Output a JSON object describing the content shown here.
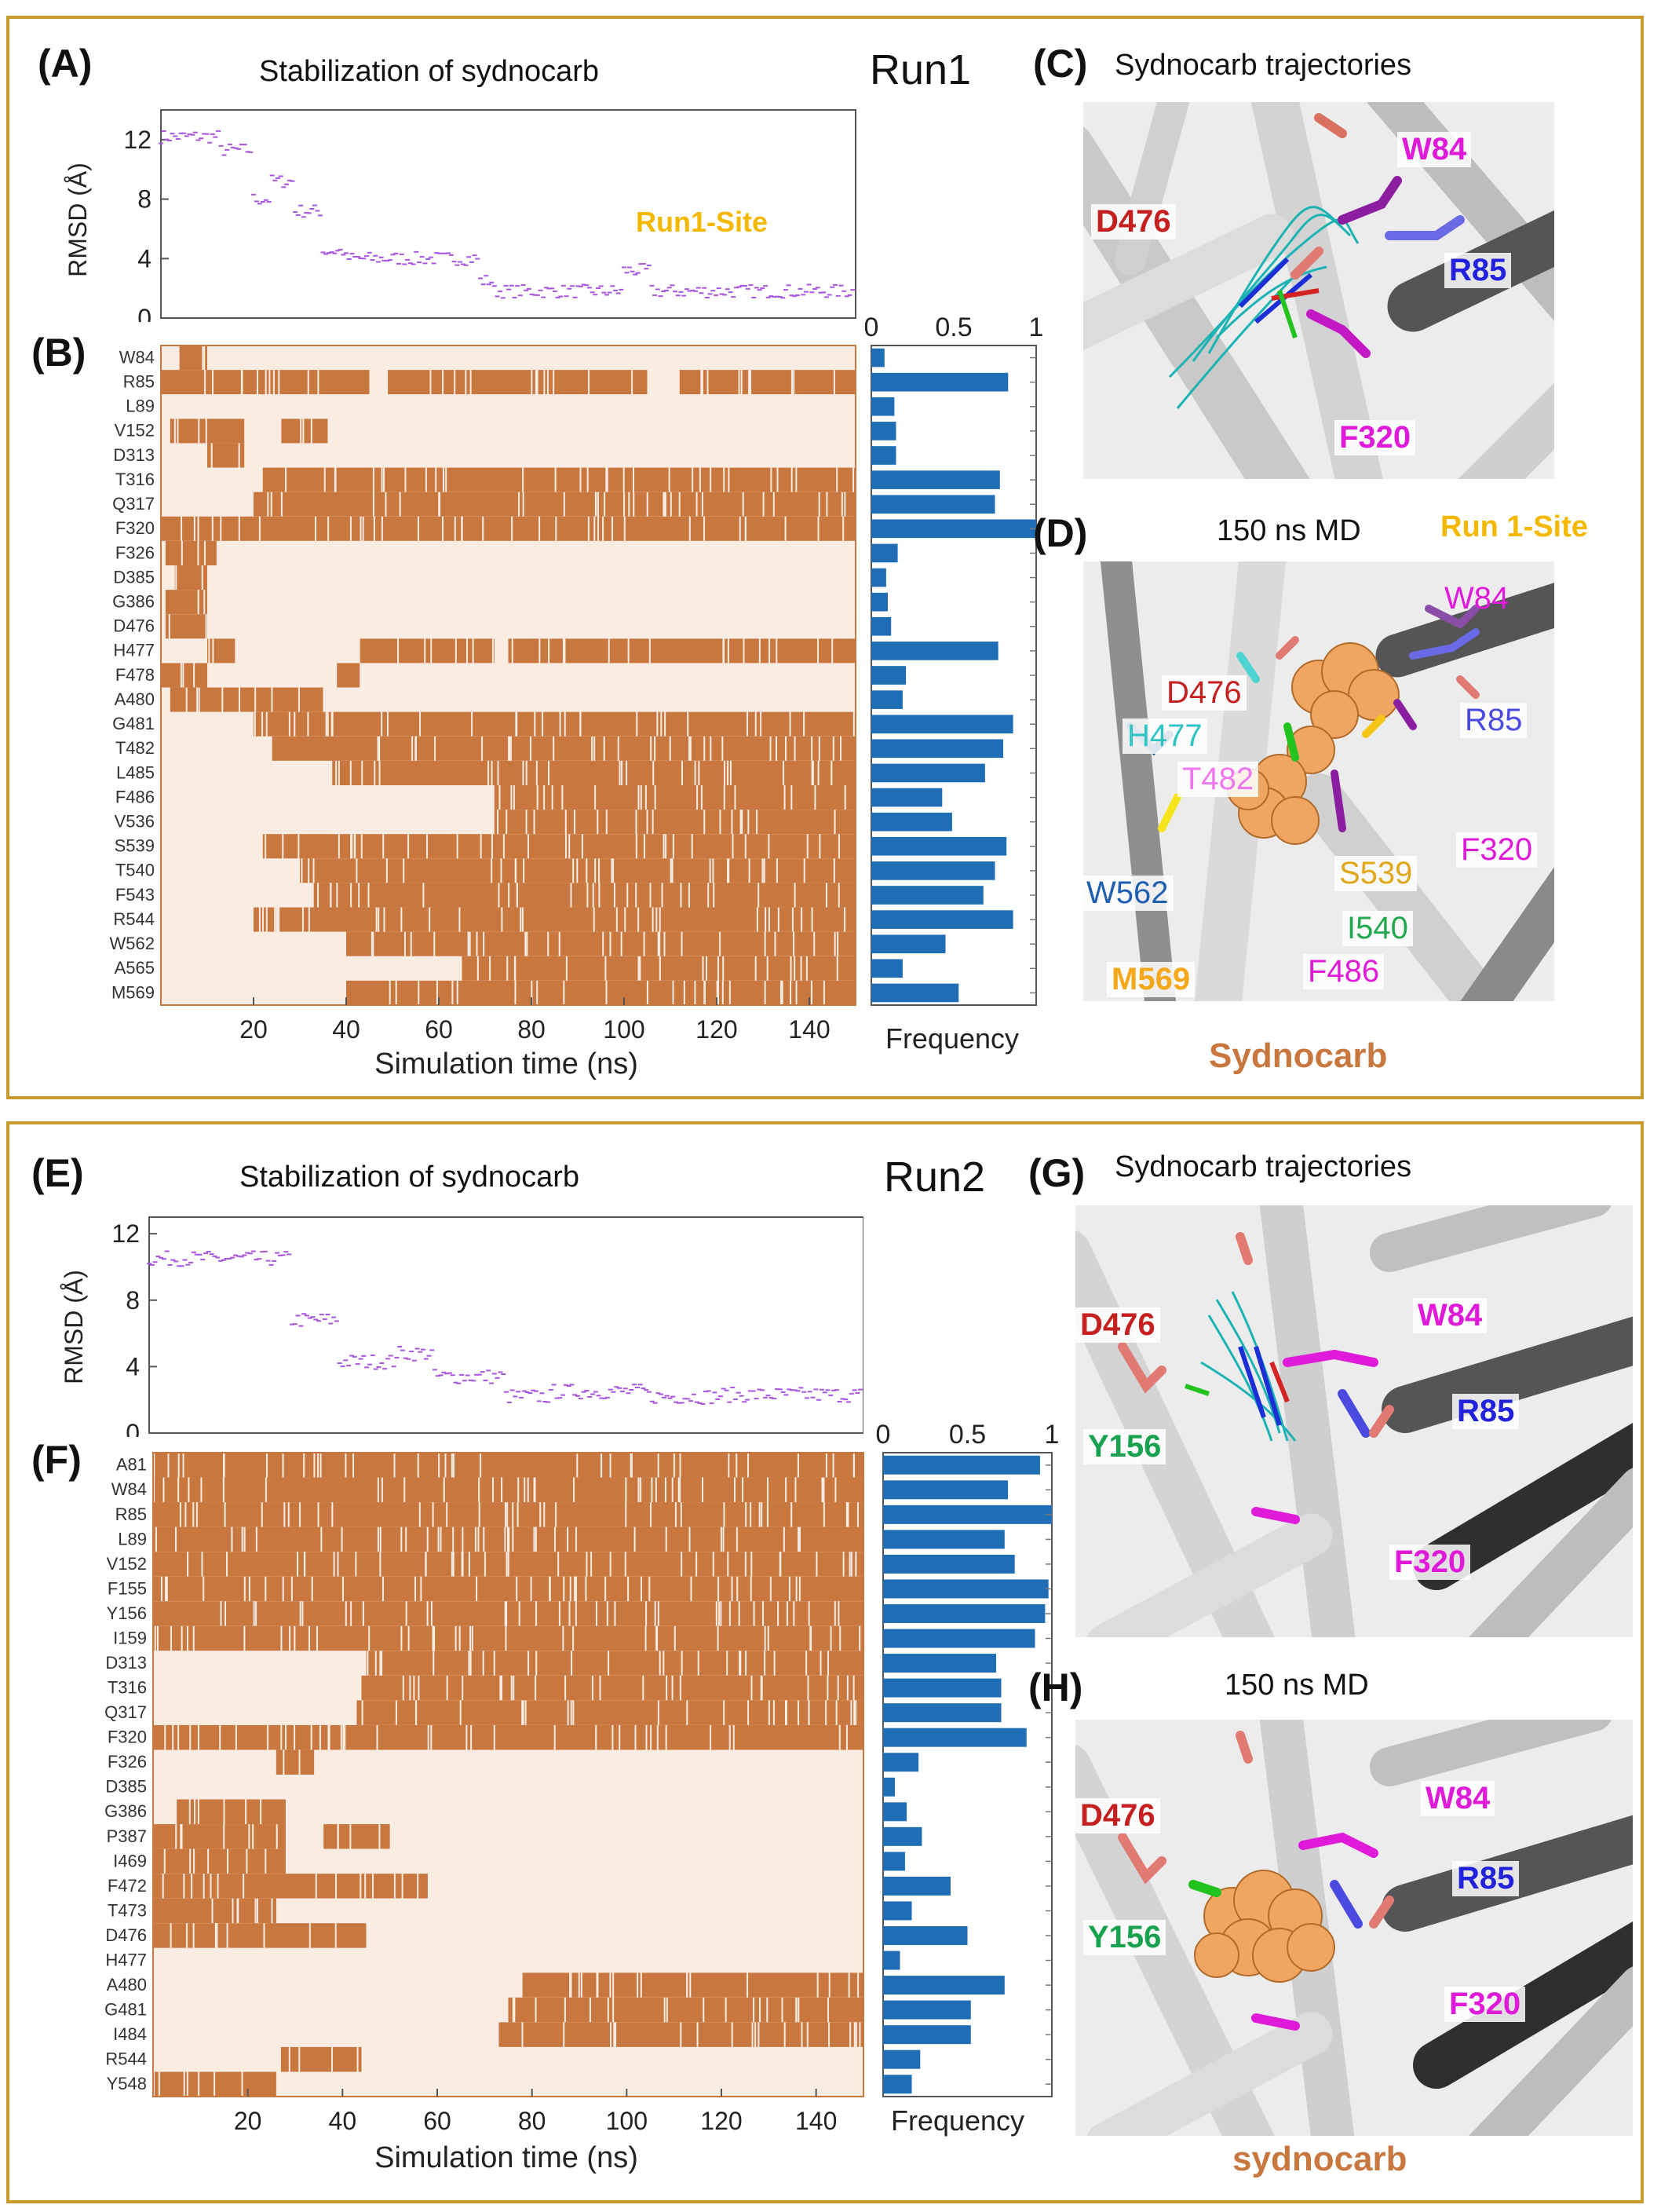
{
  "figure": {
    "run1": {
      "title": "Stabilization of sydnocarb",
      "run_label": "Run1",
      "panel_A": "(A)",
      "panel_B": "(B)",
      "panel_C": "(C)",
      "panel_D": "(D)",
      "site_label": "Run1-Site",
      "traj_label": "Sydnocarb trajectories",
      "md_label": "150 ns MD",
      "md_site_label": "Run 1-Site",
      "ligand_label": "Sydnocarb",
      "residue_labels_C": [
        "W84",
        "D476",
        "R85",
        "F320"
      ],
      "residue_labels_D": [
        "W84",
        "D476",
        "R85",
        "H477",
        "T482",
        "W562",
        "S539",
        "F320",
        "I540",
        "M569",
        "F486"
      ]
    },
    "run2": {
      "title": "Stabilization of sydnocarb",
      "run_label": "Run2",
      "panel_E": "(E)",
      "panel_F": "(F)",
      "panel_G": "(G)",
      "panel_H": "(H)",
      "traj_label": "Sydnocarb trajectories",
      "md_label": "150 ns MD",
      "ligand_label": "sydnocarb",
      "residue_labels_G": [
        "D476",
        "W84",
        "Y156",
        "R85",
        "F320"
      ],
      "residue_labels_H": [
        "D476",
        "W84",
        "R85",
        "Y156",
        "F320"
      ]
    },
    "colors": {
      "frame": "#c99a2e",
      "contact": "#c8773f",
      "no_contact": "#f9ece2",
      "bar": "#1f6eb5",
      "rmsd": "#a855e0",
      "site": "#f5b800"
    }
  },
  "chart_data": [
    {
      "id": "A",
      "type": "scatter",
      "title": "Stabilization of sydnocarb",
      "xlabel": "",
      "ylabel": "RMSD (Å)",
      "xlim": [
        0,
        150
      ],
      "ylim": [
        0,
        14
      ],
      "yticks": [
        0,
        4,
        8,
        12
      ],
      "annotation": "Run1-Site",
      "segments": [
        [
          0,
          13,
          12.2
        ],
        [
          13,
          20,
          11.3
        ],
        [
          20,
          24,
          8.0
        ],
        [
          24,
          29,
          9.2
        ],
        [
          29,
          35,
          7.2
        ],
        [
          35,
          40,
          4.5
        ],
        [
          40,
          69,
          4.0
        ],
        [
          69,
          72,
          2.5
        ],
        [
          72,
          100,
          1.8
        ],
        [
          100,
          106,
          3.2
        ],
        [
          106,
          150,
          1.8
        ]
      ]
    },
    {
      "id": "B",
      "type": "heatmap",
      "xlabel": "Simulation time (ns)",
      "xticks": [
        20,
        40,
        60,
        80,
        100,
        120,
        140
      ],
      "xlim": [
        0,
        150
      ],
      "residues": [
        "W84",
        "R85",
        "L89",
        "V152",
        "D313",
        "T316",
        "Q317",
        "F320",
        "F326",
        "D385",
        "G386",
        "D476",
        "H477",
        "F478",
        "A480",
        "G481",
        "T482",
        "L485",
        "F486",
        "V536",
        "S539",
        "T540",
        "F543",
        "R544",
        "W562",
        "A565",
        "M569"
      ],
      "contact_intervals": [
        [
          [
            4,
            10
          ]
        ],
        [
          [
            0,
            45
          ],
          [
            49,
            105
          ],
          [
            112,
            150
          ]
        ],
        [],
        [
          [
            2,
            18
          ],
          [
            26,
            36
          ]
        ],
        [
          [
            10,
            18
          ]
        ],
        [
          [
            22,
            150
          ]
        ],
        [
          [
            20,
            150
          ]
        ],
        [
          [
            0,
            150
          ]
        ],
        [
          [
            1,
            12
          ]
        ],
        [
          [
            3,
            10
          ]
        ],
        [
          [
            1,
            10
          ]
        ],
        [
          [
            1,
            10
          ]
        ],
        [
          [
            10,
            16
          ],
          [
            43,
            72
          ],
          [
            75,
            150
          ]
        ],
        [
          [
            0,
            10
          ],
          [
            38,
            43
          ]
        ],
        [
          [
            2,
            35
          ]
        ],
        [
          [
            20,
            150
          ]
        ],
        [
          [
            24,
            150
          ]
        ],
        [
          [
            37,
            150
          ]
        ],
        [
          [
            72,
            150
          ]
        ],
        [
          [
            72,
            150
          ]
        ],
        [
          [
            22,
            150
          ]
        ],
        [
          [
            30,
            150
          ]
        ],
        [
          [
            33,
            150
          ]
        ],
        [
          [
            20,
            150
          ]
        ],
        [
          [
            40,
            150
          ]
        ],
        [
          [
            65,
            150
          ]
        ],
        [
          [
            40,
            150
          ]
        ]
      ]
    },
    {
      "id": "B-frequency",
      "type": "bar",
      "orientation": "horizontal",
      "xlabel": "Frequency",
      "xlim": [
        0,
        1
      ],
      "xticks": [
        0,
        0.5,
        1
      ],
      "xtick_labels": [
        "0",
        "0.5",
        "1"
      ],
      "categories": [
        "W84",
        "R85",
        "L89",
        "V152",
        "D313",
        "T316",
        "Q317",
        "F320",
        "F326",
        "D385",
        "G386",
        "D476",
        "H477",
        "F478",
        "A480",
        "G481",
        "T482",
        "L485",
        "F486",
        "V536",
        "S539",
        "T540",
        "F543",
        "R544",
        "W562",
        "A565",
        "M569"
      ],
      "values": [
        0.08,
        0.83,
        0.14,
        0.15,
        0.15,
        0.78,
        0.75,
        1.0,
        0.16,
        0.09,
        0.1,
        0.12,
        0.77,
        0.21,
        0.19,
        0.86,
        0.8,
        0.69,
        0.43,
        0.49,
        0.82,
        0.75,
        0.68,
        0.86,
        0.45,
        0.19,
        0.53
      ]
    },
    {
      "id": "E",
      "type": "scatter",
      "title": "Stabilization of sydnocarb",
      "xlabel": "",
      "ylabel": "RMSD (Å)",
      "xlim": [
        0,
        150
      ],
      "ylim": [
        0,
        13
      ],
      "yticks": [
        0,
        4,
        8,
        12
      ],
      "segments": [
        [
          0,
          30,
          10.5
        ],
        [
          30,
          40,
          6.8
        ],
        [
          40,
          52,
          4.3
        ],
        [
          52,
          60,
          4.8
        ],
        [
          60,
          75,
          3.4
        ],
        [
          75,
          85,
          2.2
        ],
        [
          85,
          105,
          2.5
        ],
        [
          105,
          120,
          2.2
        ],
        [
          120,
          150,
          2.3
        ]
      ]
    },
    {
      "id": "F",
      "type": "heatmap",
      "xlabel": "Simulation time (ns)",
      "xticks": [
        20,
        40,
        60,
        80,
        100,
        120,
        140
      ],
      "xlim": [
        0,
        150
      ],
      "residues": [
        "A81",
        "W84",
        "R85",
        "L89",
        "V152",
        "F155",
        "Y156",
        "I159",
        "D313",
        "T316",
        "Q317",
        "F320",
        "F326",
        "D385",
        "G386",
        "P387",
        "I469",
        "F472",
        "T473",
        "D476",
        "H477",
        "A480",
        "G481",
        "I484",
        "R544",
        "Y548"
      ],
      "contact_intervals": [
        [
          [
            0,
            150
          ]
        ],
        [
          [
            0,
            150
          ]
        ],
        [
          [
            0,
            150
          ]
        ],
        [
          [
            0,
            150
          ]
        ],
        [
          [
            0,
            150
          ]
        ],
        [
          [
            0,
            150
          ]
        ],
        [
          [
            0,
            150
          ]
        ],
        [
          [
            0,
            150
          ]
        ],
        [
          [
            45,
            150
          ]
        ],
        [
          [
            44,
            150
          ]
        ],
        [
          [
            43,
            150
          ]
        ],
        [
          [
            0,
            150
          ]
        ],
        [
          [
            26,
            34
          ]
        ],
        [],
        [
          [
            5,
            28
          ]
        ],
        [
          [
            0,
            28
          ],
          [
            36,
            50
          ]
        ],
        [
          [
            0,
            28
          ]
        ],
        [
          [
            0,
            58
          ]
        ],
        [
          [
            0,
            26
          ]
        ],
        [
          [
            0,
            45
          ]
        ],
        [],
        [
          [
            78,
            150
          ]
        ],
        [
          [
            75,
            150
          ]
        ],
        [
          [
            73,
            150
          ]
        ],
        [
          [
            27,
            44
          ]
        ],
        [
          [
            0,
            26
          ]
        ]
      ]
    },
    {
      "id": "F-frequency",
      "type": "bar",
      "orientation": "horizontal",
      "xlabel": "Frequency",
      "xlim": [
        0,
        1
      ],
      "xticks": [
        0,
        0.5,
        1
      ],
      "xtick_labels": [
        "0",
        "0.5",
        "1"
      ],
      "categories": [
        "A81",
        "W84",
        "R85",
        "L89",
        "V152",
        "F155",
        "Y156",
        "I159",
        "D313",
        "T316",
        "Q317",
        "F320",
        "F326",
        "D385",
        "G386",
        "P387",
        "I469",
        "F472",
        "T473",
        "D476",
        "H477",
        "A480",
        "G481",
        "I484",
        "R544",
        "Y548"
      ],
      "values": [
        0.93,
        0.74,
        1.0,
        0.72,
        0.78,
        0.98,
        0.96,
        0.9,
        0.67,
        0.7,
        0.7,
        0.85,
        0.21,
        0.07,
        0.14,
        0.23,
        0.13,
        0.4,
        0.17,
        0.5,
        0.1,
        0.72,
        0.52,
        0.52,
        0.22,
        0.17
      ]
    }
  ]
}
